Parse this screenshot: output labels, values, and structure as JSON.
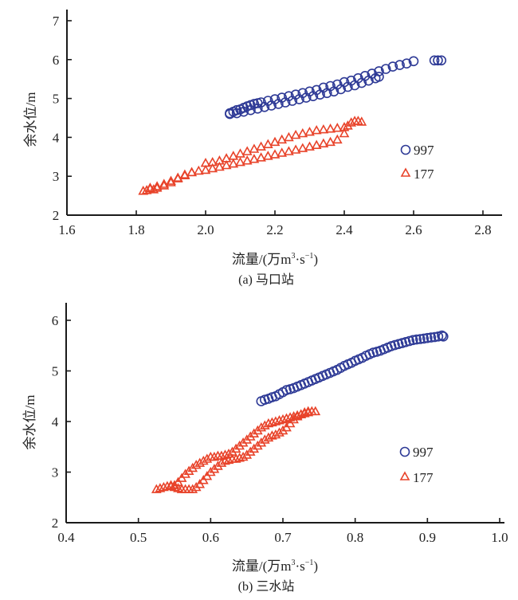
{
  "chart_data": [
    {
      "type": "scatter",
      "title": "(a) 马口站",
      "xlabel": "流量/(万m³·s⁻¹)",
      "xlabel_parts": {
        "main": "流量/(万m",
        "sup1": "3",
        "mid": "·s",
        "sup2": "−1",
        "end": ")"
      },
      "ylabel": "余水位/m",
      "xlim": [
        1.6,
        2.85
      ],
      "ylim": [
        2,
        7.3
      ],
      "xticks": [
        "1.6",
        "1.8",
        "2.0",
        "2.2",
        "2.4",
        "2.6",
        "2.8"
      ],
      "yticks": [
        "2",
        "3",
        "4",
        "5",
        "6",
        "7"
      ],
      "grid": false,
      "legend_position": "right-middle",
      "series": [
        {
          "name": "997",
          "marker": "circle",
          "color": "#2e3a96",
          "x": [
            2.07,
            2.08,
            2.09,
            2.1,
            2.11,
            2.12,
            2.13,
            2.14,
            2.15,
            2.16,
            2.18,
            2.2,
            2.22,
            2.24,
            2.26,
            2.28,
            2.3,
            2.32,
            2.34,
            2.36,
            2.38,
            2.4,
            2.42,
            2.44,
            2.46,
            2.48,
            2.5,
            2.52,
            2.54,
            2.56,
            2.58,
            2.6,
            2.66,
            2.67,
            2.68,
            2.07,
            2.09,
            2.11,
            2.13,
            2.15,
            2.17,
            2.19,
            2.21,
            2.23,
            2.25,
            2.27,
            2.29,
            2.31,
            2.33,
            2.35,
            2.37,
            2.39,
            2.41,
            2.43,
            2.45,
            2.47,
            2.49,
            2.5
          ],
          "y": [
            4.62,
            4.66,
            4.7,
            4.72,
            4.76,
            4.8,
            4.83,
            4.86,
            4.88,
            4.9,
            4.94,
            4.98,
            5.02,
            5.06,
            5.1,
            5.14,
            5.18,
            5.22,
            5.28,
            5.32,
            5.36,
            5.42,
            5.46,
            5.52,
            5.58,
            5.64,
            5.7,
            5.76,
            5.82,
            5.86,
            5.9,
            5.96,
            5.98,
            5.98,
            5.98,
            4.6,
            4.62,
            4.66,
            4.7,
            4.74,
            4.78,
            4.82,
            4.86,
            4.9,
            4.94,
            4.98,
            5.02,
            5.06,
            5.1,
            5.14,
            5.18,
            5.24,
            5.3,
            5.34,
            5.4,
            5.46,
            5.52,
            5.56
          ]
        },
        {
          "name": "177",
          "marker": "triangle",
          "color": "#e8432a",
          "x": [
            1.82,
            1.83,
            1.84,
            1.85,
            1.86,
            1.88,
            1.9,
            1.92,
            1.94,
            1.96,
            1.98,
            2.0,
            2.02,
            2.04,
            2.06,
            2.08,
            2.1,
            2.12,
            2.14,
            2.16,
            2.18,
            2.2,
            2.22,
            2.24,
            2.26,
            2.28,
            2.3,
            2.32,
            2.34,
            2.36,
            2.38,
            2.4,
            2.41,
            2.42,
            2.43,
            2.44,
            2.45,
            2.0,
            2.02,
            2.04,
            2.06,
            2.08,
            2.1,
            2.12,
            2.14,
            2.16,
            2.18,
            2.2,
            2.22,
            2.24,
            2.26,
            2.28,
            2.3,
            2.32,
            2.34,
            2.36,
            2.38,
            2.4,
            1.84,
            1.86,
            1.88,
            1.9,
            1.92,
            1.94,
            1.96
          ],
          "y": [
            2.62,
            2.64,
            2.68,
            2.66,
            2.7,
            2.76,
            2.84,
            2.94,
            3.02,
            3.1,
            3.14,
            3.16,
            3.2,
            3.24,
            3.28,
            3.32,
            3.36,
            3.4,
            3.44,
            3.48,
            3.52,
            3.56,
            3.6,
            3.64,
            3.68,
            3.72,
            3.76,
            3.8,
            3.84,
            3.88,
            3.94,
            4.1,
            4.3,
            4.38,
            4.42,
            4.42,
            4.4,
            3.34,
            3.36,
            3.4,
            3.46,
            3.52,
            3.58,
            3.64,
            3.7,
            3.76,
            3.82,
            3.88,
            3.94,
            4.0,
            4.06,
            4.1,
            4.14,
            4.18,
            4.2,
            4.22,
            4.24,
            4.26,
            2.7,
            2.74,
            2.8,
            2.88,
            2.96,
            3.04,
            3.1
          ]
        }
      ]
    },
    {
      "type": "scatter",
      "title": "(b) 三水站",
      "xlabel": "流量/(万m³·s⁻¹)",
      "xlabel_parts": {
        "main": "流量/(万m",
        "sup1": "3",
        "mid": "·s",
        "sup2": "−1",
        "end": ")"
      },
      "ylabel": "余水位/m",
      "xlim": [
        0.4,
        1.03
      ],
      "ylim": [
        2,
        6.35
      ],
      "xticks": [
        "0.4",
        "0.5",
        "0.6",
        "0.7",
        "0.8",
        "0.9",
        "1.0"
      ],
      "yticks": [
        "2",
        "3",
        "4",
        "5",
        "6"
      ],
      "grid": false,
      "legend_position": "right-middle",
      "series": [
        {
          "name": "997",
          "marker": "circle",
          "color": "#2e3a96",
          "x": [
            0.67,
            0.675,
            0.68,
            0.685,
            0.69,
            0.695,
            0.7,
            0.705,
            0.71,
            0.715,
            0.72,
            0.725,
            0.73,
            0.735,
            0.74,
            0.745,
            0.75,
            0.755,
            0.76,
            0.765,
            0.77,
            0.775,
            0.78,
            0.785,
            0.79,
            0.795,
            0.8,
            0.805,
            0.81,
            0.815,
            0.82,
            0.825,
            0.83,
            0.835,
            0.84,
            0.845,
            0.85,
            0.855,
            0.86,
            0.865,
            0.87,
            0.875,
            0.88,
            0.885,
            0.89,
            0.895,
            0.9,
            0.905,
            0.91,
            0.915,
            0.92,
            0.922
          ],
          "y": [
            4.4,
            4.43,
            4.45,
            4.48,
            4.5,
            4.54,
            4.58,
            4.62,
            4.64,
            4.66,
            4.69,
            4.72,
            4.75,
            4.78,
            4.81,
            4.84,
            4.87,
            4.9,
            4.93,
            4.96,
            4.99,
            5.02,
            5.06,
            5.1,
            5.13,
            5.16,
            5.2,
            5.23,
            5.26,
            5.3,
            5.33,
            5.36,
            5.38,
            5.4,
            5.43,
            5.46,
            5.49,
            5.51,
            5.53,
            5.55,
            5.57,
            5.59,
            5.61,
            5.62,
            5.63,
            5.64,
            5.65,
            5.66,
            5.67,
            5.68,
            5.7,
            5.68
          ]
        },
        {
          "name": "177",
          "marker": "triangle",
          "color": "#e8432a",
          "x": [
            0.525,
            0.53,
            0.535,
            0.54,
            0.545,
            0.55,
            0.555,
            0.56,
            0.565,
            0.57,
            0.575,
            0.58,
            0.585,
            0.59,
            0.595,
            0.6,
            0.605,
            0.61,
            0.615,
            0.62,
            0.625,
            0.63,
            0.635,
            0.64,
            0.645,
            0.65,
            0.655,
            0.66,
            0.665,
            0.67,
            0.675,
            0.68,
            0.685,
            0.69,
            0.695,
            0.7,
            0.705,
            0.71,
            0.715,
            0.72,
            0.725,
            0.73,
            0.735,
            0.74,
            0.745,
            0.545,
            0.55,
            0.555,
            0.56,
            0.565,
            0.57,
            0.575,
            0.58,
            0.585,
            0.59,
            0.595,
            0.6,
            0.605,
            0.61,
            0.615,
            0.62,
            0.625,
            0.63,
            0.635,
            0.64,
            0.645,
            0.65,
            0.655,
            0.66,
            0.665,
            0.67,
            0.675,
            0.68,
            0.685,
            0.69,
            0.695,
            0.7,
            0.705,
            0.71,
            0.715,
            0.72,
            0.725,
            0.73,
            0.735
          ],
          "y": [
            2.66,
            2.68,
            2.7,
            2.72,
            2.74,
            2.74,
            2.8,
            2.88,
            2.96,
            3.02,
            3.08,
            3.14,
            3.18,
            3.22,
            3.26,
            3.3,
            3.3,
            3.32,
            3.32,
            3.34,
            3.36,
            3.4,
            3.46,
            3.52,
            3.58,
            3.64,
            3.7,
            3.76,
            3.82,
            3.88,
            3.92,
            3.96,
            3.98,
            4.0,
            4.02,
            4.04,
            4.06,
            4.08,
            4.1,
            4.12,
            4.14,
            4.16,
            4.18,
            4.2,
            4.2,
            2.72,
            2.7,
            2.68,
            2.66,
            2.66,
            2.66,
            2.66,
            2.7,
            2.76,
            2.84,
            2.92,
            3.0,
            3.06,
            3.12,
            3.18,
            3.22,
            3.24,
            3.26,
            3.26,
            3.28,
            3.3,
            3.34,
            3.4,
            3.46,
            3.52,
            3.58,
            3.64,
            3.68,
            3.72,
            3.74,
            3.78,
            3.82,
            3.88,
            3.96,
            4.04,
            4.1,
            4.14,
            4.18,
            4.2
          ]
        }
      ]
    }
  ]
}
